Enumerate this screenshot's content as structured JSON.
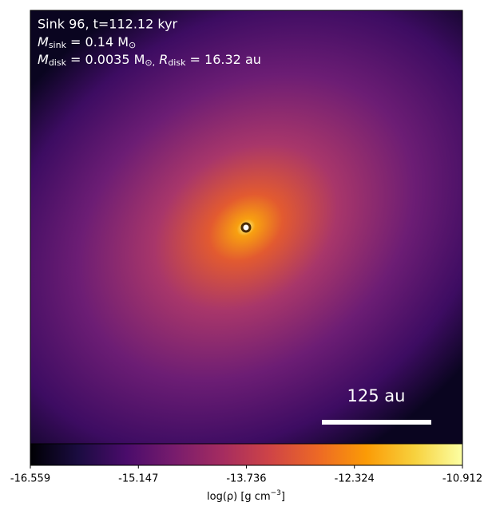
{
  "chart_data": {
    "type": "image",
    "annotations": [
      {
        "text": "Sink 96, t=112.12 kyr"
      },
      {
        "parts": [
          {
            "symbol": "M",
            "sub": "sink",
            "text": " = 0.14 M",
            "unit": "⊙"
          }
        ]
      },
      {
        "parts": [
          {
            "symbol": "M",
            "sub": "disk",
            "text": " = 0.0035 M",
            "unit": "⊙,"
          },
          {
            "symbol": " R",
            "sub": "disk",
            "text": " = 16.32 au"
          }
        ]
      }
    ],
    "scale_bar_label": "125 au",
    "colormap": "inferno",
    "clim": [
      -16.559,
      -10.912
    ],
    "cticks": [
      -16.559,
      -15.147,
      -13.736,
      -12.324,
      -10.912
    ],
    "colorbar_label": {
      "text": "log(ρ) [g cm",
      "sup": "−3",
      "end": "]"
    }
  }
}
